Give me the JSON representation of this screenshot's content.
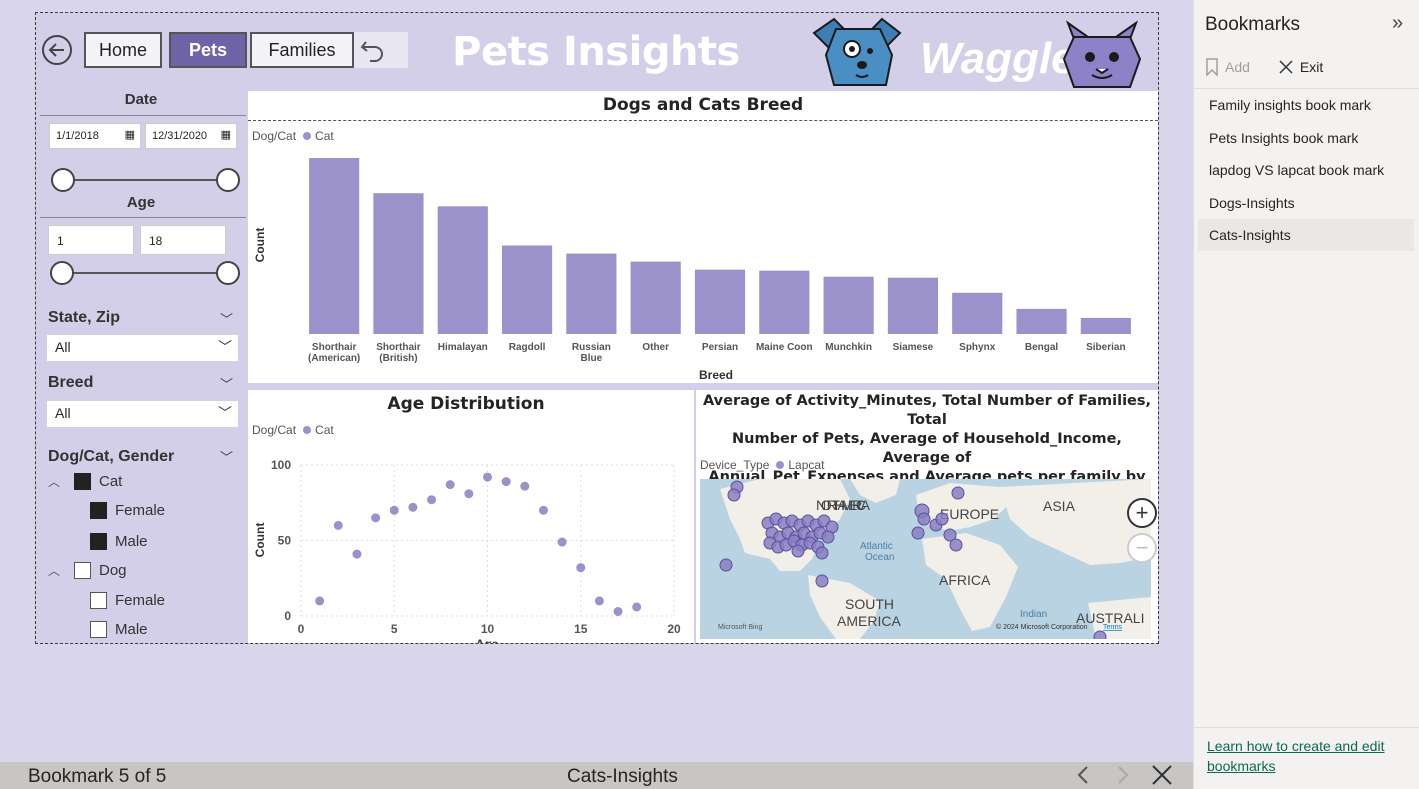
{
  "header": {
    "title": "Pets Insights",
    "nav": {
      "home": "Home",
      "pets": "Pets",
      "families": "Families"
    },
    "logo_text": "Waggle"
  },
  "slicers": {
    "date": {
      "label": "Date",
      "start": "1/1/2018",
      "end": "12/31/2020"
    },
    "age": {
      "label": "Age",
      "min": "1",
      "max": "18"
    },
    "state_zip": {
      "label": "State, Zip",
      "value": "All"
    },
    "breed": {
      "label": "Breed",
      "value": "All"
    },
    "dog_cat_gender": {
      "label": "Dog/Cat, Gender",
      "tree": [
        {
          "label": "Cat",
          "checked": true,
          "children": [
            {
              "label": "Female",
              "checked": true
            },
            {
              "label": "Male",
              "checked": true
            }
          ]
        },
        {
          "label": "Dog",
          "checked": false,
          "children": [
            {
              "label": "Female",
              "checked": false
            },
            {
              "label": "Male",
              "checked": false
            }
          ]
        }
      ]
    }
  },
  "breed_chart": {
    "title": "Dogs and Cats Breed",
    "legend_title": "Dog/Cat",
    "legend_item": "Cat"
  },
  "age_chart": {
    "title": "Age Distribution",
    "legend_title": "Dog/Cat",
    "legend_item": "Cat"
  },
  "map": {
    "title_line1": "Average of Activity_Minutes, Total Number of Families, Total",
    "title_line2": "Number of Pets, Average of Household_Income, Average of",
    "title_line3": "Annual_Pet_Expenses and Average pets per family by City ...",
    "legend_title": "Device_Type",
    "legend_item": "Lapcat",
    "labels": {
      "north_america": "NORTH AMERICA",
      "europe": "EUROPE",
      "asia": "ASIA",
      "africa": "AFRICA",
      "south_america_1": "SOUTH",
      "south_america_2": "AMERICA",
      "atlantic_1": "Atlantic",
      "atlantic_2": "Ocean",
      "indian": "Indian",
      "australia": "AUSTRALI"
    },
    "attribution": "© 2024 Microsoft Corporation",
    "terms": "Terms",
    "bing": "Microsoft Bing"
  },
  "colors": {
    "accent": "#6f63a8",
    "bar": "#9b92cb",
    "canvas": "#d9d5ea",
    "map_water": "#b9d3e3",
    "map_land": "#f2efe9"
  },
  "chart_data": [
    {
      "type": "bar",
      "title": "Dogs and Cats Breed",
      "xlabel": "Breed",
      "ylabel": "Count",
      "categories": [
        "Shorthair (American)",
        "Shorthair (British)",
        "Himalayan",
        "Ragdoll",
        "Russian Blue",
        "Other",
        "Persian",
        "Maine Coon",
        "Munchkin",
        "Siamese",
        "Sphynx",
        "Bengal",
        "Siberian"
      ],
      "series": [
        {
          "name": "Cat",
          "values": [
            175,
            140,
            127,
            88,
            80,
            72,
            64,
            63,
            57,
            56,
            41,
            25,
            16
          ]
        }
      ],
      "ylim": [
        0,
        180
      ],
      "legend": "top-left"
    },
    {
      "type": "scatter",
      "title": "Age Distribution",
      "xlabel": "Age",
      "ylabel": "Count",
      "x": [
        1,
        2,
        3,
        4,
        5,
        6,
        7,
        8,
        9,
        10,
        11,
        12,
        13,
        14,
        15,
        16,
        17,
        18
      ],
      "series": [
        {
          "name": "Cat",
          "values": [
            10,
            60,
            41,
            65,
            70,
            72,
            77,
            87,
            81,
            92,
            89,
            86,
            70,
            49,
            32,
            10,
            3,
            6
          ]
        }
      ],
      "xlim": [
        0,
        20
      ],
      "ylim": [
        0,
        100
      ],
      "xticks": [
        "0",
        "5",
        "10",
        "15",
        "20"
      ],
      "yticks": [
        "0",
        "50",
        "100"
      ],
      "legend": "top-left"
    }
  ],
  "bookmarks_pane": {
    "title": "Bookmarks",
    "add": "Add",
    "exit": "Exit",
    "items": [
      "Family insights book mark",
      "Pets Insights book mark",
      "lapdog VS lapcat book mark",
      "Dogs-Insights",
      "Cats-Insights"
    ],
    "selected": "Cats-Insights",
    "learn_link": "Learn how to create and edit bookmarks"
  },
  "bottom_bar": {
    "position": "Bookmark 5 of 5",
    "current": "Cats-Insights"
  }
}
